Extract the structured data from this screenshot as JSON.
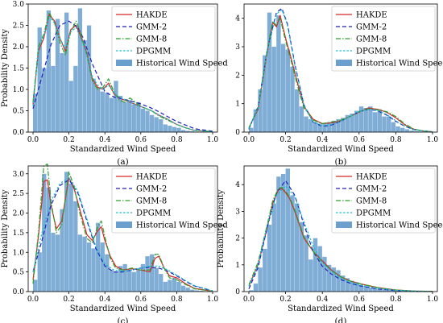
{
  "legend_entries": [
    {
      "key": "hakde",
      "label": "HAKDE",
      "color": "#d62728",
      "dash": "",
      "kind": "line"
    },
    {
      "key": "gmm2",
      "label": "GMM-2",
      "color": "#1f1fbf",
      "dash": "5,3",
      "kind": "line"
    },
    {
      "key": "gmm8",
      "label": "GMM-8",
      "color": "#2ca02c",
      "dash": "6,2,1.5,2",
      "kind": "line"
    },
    {
      "key": "dpgmm",
      "label": "DPGMM",
      "color": "#17becf",
      "dash": "2.5,2",
      "kind": "line"
    },
    {
      "key": "hist",
      "label": "Historical Wind Speed",
      "color": "#6a9fce",
      "kind": "patch"
    }
  ],
  "colors": {
    "histogram": "#6a9fce",
    "hakde": "#d62728",
    "gmm2": "#1f1fbf",
    "gmm8": "#2ca02c",
    "dpgmm": "#17becf"
  },
  "chart_data": [
    {
      "panel_label": "(a)",
      "type": "bar",
      "xlabel": "Standardized Wind Speed",
      "ylabel": "Probability Density",
      "xlim": [
        0,
        1.0
      ],
      "ylim": [
        0,
        3.0
      ],
      "xticks": [
        "0.0",
        "0.2",
        "0.4",
        "0.6",
        "0.8",
        "1.0"
      ],
      "yticks": [
        "0.0",
        "0.5",
        "1.0",
        "1.5",
        "2.0",
        "2.5",
        "3.0"
      ],
      "legend_position": "top-right",
      "bin_width": 0.025,
      "histogram": [
        0.9,
        2.45,
        1.5,
        2.85,
        1.55,
        2.65,
        1.85,
        2.8,
        1.2,
        1.55,
        2.9,
        2.15,
        2.5,
        1.25,
        1.05,
        0.95,
        0.92,
        0.8,
        1.2,
        0.85,
        0.7,
        0.75,
        0.65,
        0.7,
        0.55,
        0.5,
        0.4,
        0.35,
        0.3,
        0.18,
        0.15,
        0.12,
        0.1,
        0.05,
        0.03,
        0.02,
        0.01,
        0,
        0,
        0
      ],
      "series": [
        {
          "key": "hakde",
          "x": [
            0,
            0.03,
            0.06,
            0.09,
            0.12,
            0.15,
            0.18,
            0.21,
            0.24,
            0.27,
            0.3,
            0.33,
            0.36,
            0.39,
            0.42,
            0.45,
            0.48,
            0.51,
            0.54,
            0.57,
            0.6,
            0.63,
            0.66,
            0.7,
            0.75,
            0.8,
            0.85,
            0.9,
            1.0
          ],
          "y": [
            0.65,
            1.9,
            2.2,
            2.75,
            2.6,
            2.2,
            1.9,
            2.4,
            2.5,
            2.2,
            1.85,
            1.25,
            1.05,
            1.0,
            1.15,
            0.9,
            0.8,
            0.75,
            0.7,
            0.65,
            0.6,
            0.55,
            0.5,
            0.4,
            0.3,
            0.18,
            0.1,
            0.04,
            0.01
          ]
        },
        {
          "key": "gmm2",
          "x": [
            0,
            0.05,
            0.1,
            0.15,
            0.2,
            0.25,
            0.28,
            0.33,
            0.4,
            0.45,
            0.5,
            0.55,
            0.6,
            0.65,
            0.7,
            0.75,
            0.8,
            0.9,
            1.0
          ],
          "y": [
            0.55,
            1.3,
            2.05,
            2.5,
            2.6,
            2.45,
            2.2,
            1.6,
            0.95,
            0.82,
            0.78,
            0.72,
            0.66,
            0.58,
            0.48,
            0.36,
            0.25,
            0.08,
            0.02
          ]
        },
        {
          "key": "gmm8",
          "x": [
            0,
            0.03,
            0.06,
            0.09,
            0.12,
            0.15,
            0.18,
            0.21,
            0.24,
            0.27,
            0.3,
            0.33,
            0.36,
            0.39,
            0.42,
            0.45,
            0.48,
            0.51,
            0.54,
            0.57,
            0.6,
            0.63,
            0.66,
            0.7,
            0.75,
            0.8,
            0.85,
            0.9,
            1.0
          ],
          "y": [
            0.7,
            2.0,
            2.3,
            2.8,
            2.55,
            2.1,
            1.8,
            2.35,
            2.6,
            2.25,
            1.8,
            1.2,
            1.0,
            1.05,
            1.25,
            0.95,
            0.75,
            0.7,
            0.8,
            0.7,
            0.6,
            0.55,
            0.5,
            0.38,
            0.28,
            0.18,
            0.1,
            0.04,
            0.01
          ]
        },
        {
          "key": "dpgmm",
          "x": [
            0,
            0.03,
            0.06,
            0.09,
            0.12,
            0.15,
            0.18,
            0.21,
            0.24,
            0.27,
            0.3,
            0.33,
            0.36,
            0.39,
            0.42,
            0.45,
            0.48,
            0.51,
            0.54,
            0.57,
            0.6,
            0.63,
            0.66,
            0.7,
            0.75,
            0.8,
            0.85,
            0.9,
            1.0
          ],
          "y": [
            0.6,
            1.95,
            2.25,
            2.7,
            2.55,
            2.2,
            1.95,
            2.35,
            2.45,
            2.15,
            1.8,
            1.3,
            1.1,
            1.0,
            1.1,
            0.92,
            0.82,
            0.76,
            0.7,
            0.64,
            0.6,
            0.55,
            0.5,
            0.4,
            0.3,
            0.18,
            0.1,
            0.04,
            0.01
          ]
        }
      ]
    },
    {
      "panel_label": "(b)",
      "type": "bar",
      "xlabel": "Standardized Wind Speed",
      "ylabel": "",
      "xlim": [
        0,
        1.0
      ],
      "ylim": [
        0,
        4.5
      ],
      "xticks": [
        "0.0",
        "0.2",
        "0.4",
        "0.6",
        "0.8",
        "1.0"
      ],
      "yticks": [
        "0",
        "1",
        "2",
        "3",
        "4"
      ],
      "legend_position": "top-right",
      "bin_width": 0.025,
      "histogram": [
        0.15,
        0.8,
        1.5,
        2.7,
        4.2,
        3.0,
        4.1,
        3.1,
        2.9,
        2.3,
        1.5,
        0.9,
        0.55,
        0.45,
        0.35,
        0.3,
        0.3,
        0.35,
        0.4,
        0.45,
        0.5,
        0.6,
        0.65,
        0.75,
        0.9,
        0.85,
        0.9,
        0.7,
        0.8,
        0.55,
        0.55,
        0.35,
        0.2,
        0.15,
        0.1,
        0.05,
        0.03,
        0.02,
        0.01,
        0
      ],
      "series": [
        {
          "key": "hakde",
          "x": [
            0,
            0.05,
            0.1,
            0.13,
            0.15,
            0.17,
            0.2,
            0.23,
            0.27,
            0.3,
            0.35,
            0.4,
            0.45,
            0.5,
            0.55,
            0.6,
            0.65,
            0.7,
            0.75,
            0.8,
            0.85,
            0.9,
            0.95,
            1.0
          ],
          "y": [
            0.15,
            0.8,
            2.8,
            3.85,
            3.7,
            4.1,
            3.3,
            2.6,
            1.6,
            0.9,
            0.45,
            0.3,
            0.32,
            0.4,
            0.55,
            0.7,
            0.85,
            0.8,
            0.7,
            0.5,
            0.25,
            0.1,
            0.04,
            0.01
          ]
        },
        {
          "key": "gmm2",
          "x": [
            0,
            0.05,
            0.1,
            0.15,
            0.18,
            0.21,
            0.25,
            0.3,
            0.35,
            0.4,
            0.45,
            0.5,
            0.55,
            0.6,
            0.65,
            0.7,
            0.75,
            0.8,
            0.85,
            0.9,
            1.0
          ],
          "y": [
            0.1,
            0.9,
            2.9,
            4.2,
            4.35,
            3.8,
            2.4,
            0.95,
            0.35,
            0.2,
            0.25,
            0.38,
            0.55,
            0.72,
            0.8,
            0.75,
            0.6,
            0.38,
            0.2,
            0.08,
            0.01
          ]
        },
        {
          "key": "gmm8",
          "x": [
            0,
            0.05,
            0.1,
            0.13,
            0.15,
            0.17,
            0.2,
            0.23,
            0.27,
            0.3,
            0.35,
            0.4,
            0.45,
            0.5,
            0.55,
            0.6,
            0.65,
            0.7,
            0.75,
            0.8,
            0.85,
            0.9,
            0.95,
            1.0
          ],
          "y": [
            0.15,
            0.85,
            2.9,
            3.9,
            3.75,
            4.0,
            3.2,
            2.5,
            1.5,
            0.85,
            0.42,
            0.3,
            0.35,
            0.42,
            0.55,
            0.72,
            0.82,
            0.78,
            0.72,
            0.55,
            0.28,
            0.1,
            0.04,
            0.01
          ]
        },
        {
          "key": "dpgmm",
          "x": [
            0,
            0.05,
            0.1,
            0.15,
            0.18,
            0.21,
            0.25,
            0.3,
            0.35,
            0.4,
            0.45,
            0.5,
            0.55,
            0.6,
            0.65,
            0.7,
            0.75,
            0.8,
            0.85,
            0.9,
            1.0
          ],
          "y": [
            0.12,
            0.85,
            2.85,
            4.15,
            4.3,
            3.75,
            2.35,
            0.95,
            0.35,
            0.22,
            0.27,
            0.38,
            0.55,
            0.72,
            0.8,
            0.76,
            0.62,
            0.4,
            0.2,
            0.08,
            0.01
          ]
        }
      ]
    },
    {
      "panel_label": "(c)",
      "type": "bar",
      "xlabel": "Standardized Wind Speed",
      "ylabel": "Probability Density",
      "xlim": [
        0,
        1.0
      ],
      "ylim": [
        0,
        3.2
      ],
      "xticks": [
        "0.0",
        "0.2",
        "0.4",
        "0.6",
        "0.8",
        "1.0"
      ],
      "yticks": [
        "0.0",
        "0.5",
        "1.0",
        "1.5",
        "2.0",
        "2.5",
        "3.0"
      ],
      "legend_position": "top-right",
      "bin_width": 0.025,
      "histogram": [
        0.3,
        1.0,
        3.0,
        2.65,
        1.5,
        1.45,
        2.1,
        3.05,
        2.75,
        2.3,
        1.45,
        1.4,
        1.25,
        1.1,
        1.75,
        1.25,
        0.95,
        0.55,
        0.5,
        0.65,
        0.7,
        0.55,
        0.5,
        0.55,
        0.7,
        0.9,
        0.95,
        0.6,
        0.45,
        0.25,
        0.3,
        0.35,
        0.25,
        0.15,
        0.1,
        0.05,
        0.03,
        0.02,
        0.01,
        0
      ],
      "series": [
        {
          "key": "hakde",
          "x": [
            0,
            0.03,
            0.06,
            0.08,
            0.1,
            0.13,
            0.16,
            0.2,
            0.23,
            0.26,
            0.3,
            0.33,
            0.36,
            0.38,
            0.4,
            0.43,
            0.46,
            0.5,
            0.55,
            0.6,
            0.65,
            0.68,
            0.7,
            0.73,
            0.76,
            0.8,
            0.85,
            0.9,
            1.0
          ],
          "y": [
            0.3,
            1.4,
            2.8,
            2.85,
            2.2,
            1.6,
            1.8,
            2.9,
            2.6,
            2.1,
            1.45,
            1.3,
            1.55,
            1.65,
            1.3,
            0.9,
            0.65,
            0.55,
            0.58,
            0.55,
            0.5,
            0.85,
            0.9,
            0.6,
            0.4,
            0.35,
            0.2,
            0.08,
            0.01
          ]
        },
        {
          "key": "gmm2",
          "x": [
            0,
            0.05,
            0.1,
            0.15,
            0.2,
            0.25,
            0.3,
            0.35,
            0.4,
            0.45,
            0.5,
            0.55,
            0.6,
            0.65,
            0.7,
            0.75,
            0.8,
            0.85,
            0.9,
            1.0
          ],
          "y": [
            0.5,
            1.3,
            2.2,
            2.7,
            2.85,
            2.5,
            1.8,
            1.1,
            0.65,
            0.5,
            0.5,
            0.55,
            0.6,
            0.62,
            0.6,
            0.52,
            0.4,
            0.26,
            0.14,
            0.02
          ]
        },
        {
          "key": "gmm8",
          "x": [
            0,
            0.03,
            0.06,
            0.08,
            0.1,
            0.13,
            0.16,
            0.2,
            0.23,
            0.26,
            0.3,
            0.33,
            0.36,
            0.38,
            0.4,
            0.43,
            0.46,
            0.5,
            0.55,
            0.6,
            0.65,
            0.68,
            0.7,
            0.73,
            0.76,
            0.8,
            0.85,
            0.9,
            1.0
          ],
          "y": [
            0.2,
            1.5,
            3.2,
            3.25,
            2.3,
            1.5,
            1.7,
            3.05,
            2.65,
            2.0,
            1.35,
            1.25,
            1.65,
            1.8,
            1.4,
            0.85,
            0.6,
            0.55,
            0.6,
            0.55,
            0.55,
            0.95,
            0.95,
            0.6,
            0.35,
            0.3,
            0.18,
            0.07,
            0.01
          ]
        },
        {
          "key": "dpgmm",
          "x": [
            0,
            0.05,
            0.1,
            0.15,
            0.2,
            0.25,
            0.3,
            0.35,
            0.4,
            0.45,
            0.5,
            0.55,
            0.6,
            0.65,
            0.7,
            0.75,
            0.8,
            0.85,
            0.9,
            1.0
          ],
          "y": [
            0.5,
            1.5,
            2.3,
            2.75,
            2.9,
            2.55,
            1.85,
            1.15,
            0.7,
            0.55,
            0.52,
            0.55,
            0.6,
            0.65,
            0.65,
            0.55,
            0.42,
            0.28,
            0.15,
            0.02
          ]
        }
      ]
    },
    {
      "panel_label": "(d)",
      "type": "bar",
      "xlabel": "Standardized Wind Speed",
      "ylabel": "Probability Density",
      "xlim": [
        0,
        1.0
      ],
      "ylim": [
        0,
        4.7
      ],
      "xticks": [
        "0.0",
        "0.2",
        "0.4",
        "0.6",
        "0.8",
        "1.0"
      ],
      "yticks": [
        "0",
        "1",
        "2",
        "3",
        "4"
      ],
      "legend_position": "top-right",
      "bin_width": 0.025,
      "histogram": [
        0.05,
        0.3,
        0.9,
        1.6,
        2.5,
        3.3,
        4.3,
        4.4,
        4.6,
        3.6,
        3.3,
        2.6,
        2.1,
        1.2,
        2.0,
        1.7,
        1.3,
        1.0,
        0.9,
        0.8,
        0.6,
        0.5,
        0.4,
        0.35,
        0.25,
        0.2,
        0.15,
        0.12,
        0.1,
        0.08,
        0.06,
        0.05,
        0.04,
        0.03,
        0.02,
        0.01,
        0.01,
        0,
        0,
        0
      ],
      "series": [
        {
          "key": "hakde",
          "x": [
            0,
            0.05,
            0.1,
            0.13,
            0.16,
            0.18,
            0.2,
            0.22,
            0.25,
            0.3,
            0.35,
            0.4,
            0.45,
            0.5,
            0.55,
            0.6,
            0.7,
            0.8,
            0.9,
            1.0
          ],
          "y": [
            0.2,
            1.0,
            2.4,
            3.3,
            3.8,
            3.85,
            3.7,
            3.5,
            3.0,
            2.0,
            1.5,
            1.15,
            0.8,
            0.55,
            0.4,
            0.3,
            0.15,
            0.06,
            0.02,
            0.01
          ]
        },
        {
          "key": "gmm2",
          "x": [
            0,
            0.05,
            0.1,
            0.15,
            0.2,
            0.25,
            0.3,
            0.35,
            0.4,
            0.45,
            0.5,
            0.55,
            0.6,
            0.7,
            0.8,
            0.9,
            1.0
          ],
          "y": [
            0.1,
            0.9,
            2.4,
            3.7,
            4.15,
            3.6,
            2.5,
            1.5,
            0.95,
            0.65,
            0.45,
            0.32,
            0.22,
            0.1,
            0.04,
            0.01,
            0
          ]
        },
        {
          "key": "gmm8",
          "x": [
            0,
            0.05,
            0.1,
            0.13,
            0.16,
            0.18,
            0.2,
            0.22,
            0.25,
            0.3,
            0.35,
            0.4,
            0.45,
            0.5,
            0.55,
            0.6,
            0.7,
            0.8,
            0.9,
            1.0
          ],
          "y": [
            0.25,
            1.1,
            2.5,
            3.4,
            3.85,
            3.9,
            3.75,
            3.55,
            3.05,
            2.05,
            1.5,
            1.1,
            0.78,
            0.55,
            0.4,
            0.3,
            0.15,
            0.06,
            0.02,
            0.01
          ]
        },
        {
          "key": "dpgmm",
          "x": [
            0,
            0.05,
            0.1,
            0.15,
            0.2,
            0.25,
            0.3,
            0.35,
            0.4,
            0.45,
            0.5,
            0.55,
            0.6,
            0.7,
            0.8,
            0.9,
            1.0
          ],
          "y": [
            0.2,
            1.0,
            2.5,
            3.6,
            3.95,
            3.55,
            2.6,
            1.7,
            1.1,
            0.75,
            0.5,
            0.35,
            0.25,
            0.12,
            0.05,
            0.02,
            0
          ]
        }
      ]
    }
  ]
}
